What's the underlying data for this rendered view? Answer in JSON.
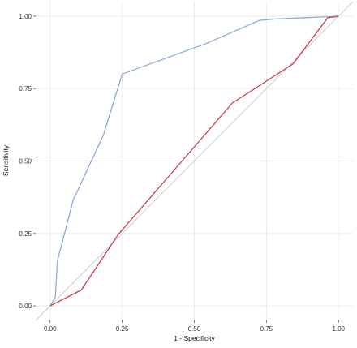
{
  "chart_data": {
    "type": "line",
    "xlabel": "1 - Specificity",
    "ylabel": "Sensitivity",
    "xlim": [
      -0.05,
      1.05
    ],
    "ylim": [
      -0.05,
      1.05
    ],
    "grid": true,
    "x_ticks": [
      {
        "value": 0,
        "label": "0.00"
      },
      {
        "value": 0.25,
        "label": "0.25"
      },
      {
        "value": 0.5,
        "label": "0.50"
      },
      {
        "value": 0.75,
        "label": "0.75"
      },
      {
        "value": 1,
        "label": "1.00"
      }
    ],
    "y_ticks": [
      {
        "value": 0,
        "label": "0.00"
      },
      {
        "value": 0.25,
        "label": "0.25"
      },
      {
        "value": 0.5,
        "label": "0.50"
      },
      {
        "value": 0.75,
        "label": "0.75"
      },
      {
        "value": 1,
        "label": "1.00"
      }
    ],
    "reference_line": {
      "x": [
        0,
        1
      ],
      "y": [
        0,
        1
      ],
      "color": "#cccccc"
    },
    "series": [
      {
        "color": "#8fa9df",
        "x": [
          0.0,
          0.018,
          0.025,
          0.08,
          0.185,
          0.25,
          0.54,
          0.725,
          0.78,
          0.945,
          1.0
        ],
        "y": [
          0.0,
          0.03,
          0.155,
          0.365,
          0.59,
          0.8,
          0.905,
          0.985,
          0.99,
          0.997,
          1.0
        ]
      },
      {
        "color": "#cf3f4f",
        "x": [
          0.0,
          0.108,
          0.235,
          0.632,
          0.842,
          0.963,
          0.99,
          1.0
        ],
        "y": [
          0.0,
          0.055,
          0.245,
          0.7,
          0.835,
          0.995,
          0.998,
          1.0
        ]
      }
    ]
  }
}
